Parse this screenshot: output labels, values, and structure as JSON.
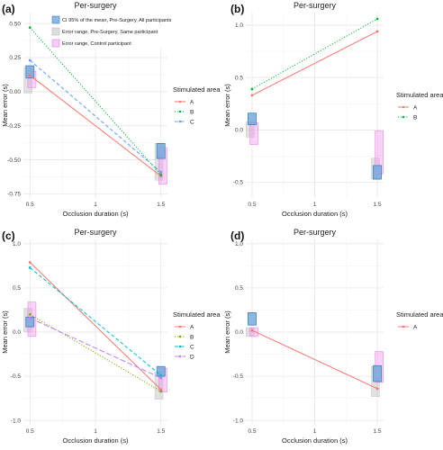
{
  "colors": {
    "A": "#f8766d",
    "B": "#00ba38",
    "C": "#619cff",
    "A4": "#f8766d",
    "B4": "#7cae00",
    "C4": "#00bfc4",
    "D4": "#c77cff",
    "ci_fill": "#6fa8dc",
    "ci_stroke": "#3d7fc1",
    "err_same": "#c8c8c8",
    "err_control": "#f39cf0"
  },
  "chart_data": [
    {
      "panel": "(a)",
      "type": "line",
      "title": "Per-surgery",
      "xlabel": "Occlusion duration (s)",
      "ylabel": "Mean error (s)",
      "x_ticks": [
        0.5,
        1,
        1.5
      ],
      "y_ticks": [
        -0.75,
        -0.5,
        -0.25,
        0,
        0.25,
        0.5
      ],
      "xlim": [
        0.45,
        1.55
      ],
      "ylim": [
        -0.78,
        0.58
      ],
      "legend_title": "Stimulated area",
      "series": [
        {
          "name": "A",
          "x": [
            0.5,
            1.5
          ],
          "y": [
            0.12,
            -0.62
          ],
          "dash": "solid"
        },
        {
          "name": "B",
          "x": [
            0.5,
            1.5
          ],
          "y": [
            0.47,
            -0.61
          ],
          "dash": "dotted"
        },
        {
          "name": "C",
          "x": [
            0.5,
            1.5
          ],
          "y": [
            0.23,
            -0.59
          ],
          "dash": "dashed"
        }
      ],
      "boxes": [
        {
          "kind": "err_same",
          "x": 0.485,
          "y": [
            -0.01,
            0.18
          ]
        },
        {
          "kind": "err_control",
          "x": 0.515,
          "y": [
            0.03,
            0.15
          ]
        },
        {
          "kind": "ci",
          "x": 0.5,
          "y": [
            0.1,
            0.19
          ]
        },
        {
          "kind": "err_same",
          "x": 1.485,
          "y": [
            -0.65,
            -0.38
          ]
        },
        {
          "kind": "err_control",
          "x": 1.515,
          "y": [
            -0.68,
            -0.41
          ]
        },
        {
          "kind": "ci",
          "x": 1.5,
          "y": [
            -0.49,
            -0.38
          ]
        }
      ],
      "key": [
        {
          "kind": "ci",
          "label": "CI 95% of the mean, Pre-Surgery, All participants"
        },
        {
          "kind": "err_same",
          "label": "Error range, Pre-Surgery, Same participant"
        },
        {
          "kind": "err_control",
          "label": "Error range, Control participant"
        }
      ]
    },
    {
      "panel": "(b)",
      "type": "line",
      "title": "Per-surgery",
      "xlabel": "Occlusion duration (s)",
      "ylabel": "Mean error (s)",
      "x_ticks": [
        0.5,
        1,
        1.5
      ],
      "y_ticks": [
        -0.5,
        0,
        0.5,
        1
      ],
      "xlim": [
        0.45,
        1.55
      ],
      "ylim": [
        -0.65,
        1.12
      ],
      "legend_title": "Stimulated area",
      "series": [
        {
          "name": "A",
          "x": [
            0.5,
            1.5
          ],
          "y": [
            0.33,
            0.94
          ],
          "dash": "solid"
        },
        {
          "name": "B",
          "x": [
            0.5,
            1.5
          ],
          "y": [
            0.39,
            1.06
          ],
          "dash": "dotted"
        }
      ],
      "boxes": [
        {
          "kind": "err_same",
          "x": 0.485,
          "y": [
            -0.07,
            0.08
          ]
        },
        {
          "kind": "err_control",
          "x": 0.515,
          "y": [
            -0.14,
            0.07
          ]
        },
        {
          "kind": "ci",
          "x": 0.5,
          "y": [
            0.05,
            0.16
          ]
        },
        {
          "kind": "err_same",
          "x": 1.485,
          "y": [
            -0.47,
            -0.27
          ]
        },
        {
          "kind": "err_control",
          "x": 1.515,
          "y": [
            -0.42,
            -0.01
          ]
        },
        {
          "kind": "ci",
          "x": 1.5,
          "y": [
            -0.47,
            -0.34
          ]
        }
      ]
    },
    {
      "panel": "(c)",
      "type": "line",
      "title": "Per-surgery",
      "xlabel": "Occlusion duration (s)",
      "ylabel": "Mean error (s)",
      "x_ticks": [
        0.5,
        1,
        1.5
      ],
      "y_ticks": [
        -1.0,
        -0.5,
        0,
        0.5,
        1.0
      ],
      "xlim": [
        0.45,
        1.55
      ],
      "ylim": [
        -1.05,
        1.05
      ],
      "legend_title": "Stimulated area",
      "series": [
        {
          "name": "A",
          "x": [
            0.5,
            1.5
          ],
          "y": [
            0.79,
            -0.65
          ],
          "dash": "solid",
          "color_key": "A4"
        },
        {
          "name": "B",
          "x": [
            0.5,
            1.5
          ],
          "y": [
            0.2,
            -0.67
          ],
          "dash": "dotted",
          "color_key": "B4"
        },
        {
          "name": "C",
          "x": [
            0.5,
            1.5
          ],
          "y": [
            0.73,
            -0.49
          ],
          "dash": "dashed",
          "color_key": "C4"
        },
        {
          "name": "D",
          "x": [
            0.5,
            1.5
          ],
          "y": [
            0.16,
            -0.52
          ],
          "dash": "longdash",
          "color_key": "D4"
        }
      ],
      "boxes": [
        {
          "kind": "err_same",
          "x": 0.485,
          "y": [
            0.0,
            0.27
          ]
        },
        {
          "kind": "err_control",
          "x": 0.515,
          "y": [
            -0.05,
            0.34
          ]
        },
        {
          "kind": "ci",
          "x": 0.5,
          "y": [
            0.06,
            0.17
          ]
        },
        {
          "kind": "err_same",
          "x": 1.485,
          "y": [
            -0.76,
            -0.45
          ]
        },
        {
          "kind": "err_control",
          "x": 1.515,
          "y": [
            -0.68,
            -0.41
          ]
        },
        {
          "kind": "ci",
          "x": 1.5,
          "y": [
            -0.5,
            -0.39
          ]
        }
      ]
    },
    {
      "panel": "(d)",
      "type": "line",
      "title": "Per-surgery",
      "xlabel": "Occlusion duration (s)",
      "ylabel": "Mean error (s)",
      "x_ticks": [
        0.5,
        1,
        1.5
      ],
      "y_ticks": [
        -1.0,
        -0.5,
        0,
        0.5,
        1.0
      ],
      "xlim": [
        0.45,
        1.55
      ],
      "ylim": [
        -1.05,
        1.05
      ],
      "legend_title": "Stimulated area",
      "series": [
        {
          "name": "A",
          "x": [
            0.5,
            1.5
          ],
          "y": [
            0.02,
            -0.64
          ],
          "dash": "solid"
        }
      ],
      "boxes": [
        {
          "kind": "err_same",
          "x": 0.485,
          "y": [
            -0.05,
            0.05
          ]
        },
        {
          "kind": "err_control",
          "x": 0.515,
          "y": [
            -0.05,
            0.05
          ]
        },
        {
          "kind": "ci",
          "x": 0.5,
          "y": [
            0.08,
            0.22
          ]
        },
        {
          "kind": "err_same",
          "x": 1.485,
          "y": [
            -0.73,
            -0.39
          ]
        },
        {
          "kind": "err_control",
          "x": 1.515,
          "y": [
            -0.57,
            -0.22
          ]
        },
        {
          "kind": "ci",
          "x": 1.5,
          "y": [
            -0.56,
            -0.38
          ]
        }
      ]
    }
  ]
}
